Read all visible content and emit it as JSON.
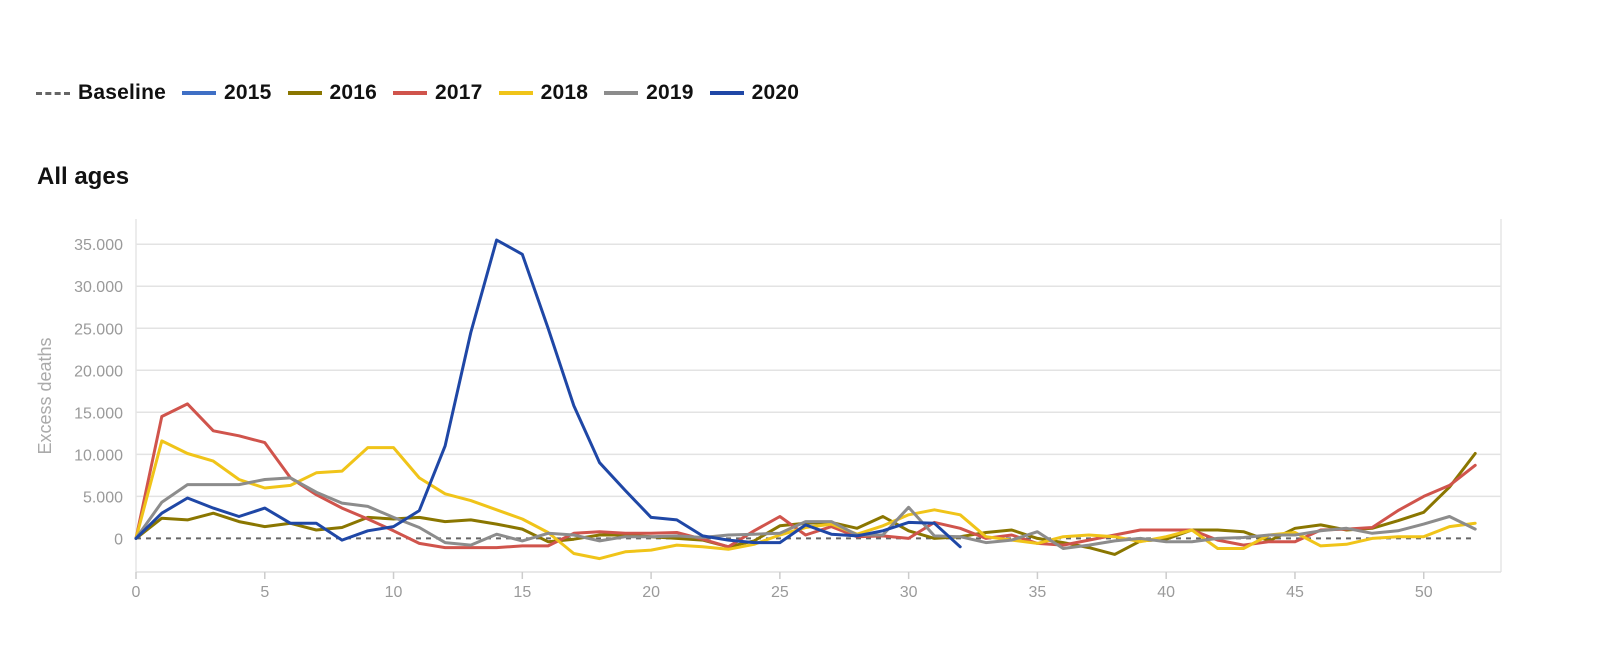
{
  "chart_data": {
    "type": "line",
    "title": "All ages",
    "ylabel": "Excess deaths",
    "xlabel": "",
    "xlim": [
      0,
      53
    ],
    "ylim": [
      -4000,
      38000
    ],
    "x_ticks": [
      0,
      5,
      10,
      15,
      20,
      25,
      30,
      35,
      40,
      45,
      50
    ],
    "y_ticks": [
      0,
      5000,
      10000,
      15000,
      20000,
      25000,
      30000,
      35000
    ],
    "y_tick_labels": [
      "0",
      "5.000",
      "10.000",
      "15.000",
      "20.000",
      "25.000",
      "30.000",
      "35.000"
    ],
    "grid": true,
    "legend_position": "top-left",
    "series": [
      {
        "name": "Baseline",
        "color": "#666666",
        "dashed": true,
        "x": [
          0,
          52
        ],
        "values": [
          0,
          0
        ]
      },
      {
        "name": "2015",
        "color": "#3f6fc5",
        "dashed": false,
        "x": [],
        "values": []
      },
      {
        "name": "2016",
        "color": "#8a7600",
        "dashed": false,
        "x": [
          0,
          1,
          2,
          3,
          4,
          5,
          6,
          7,
          8,
          9,
          10,
          11,
          12,
          13,
          14,
          15,
          16,
          17,
          18,
          19,
          20,
          21,
          22,
          23,
          24,
          25,
          26,
          27,
          28,
          29,
          30,
          31,
          32,
          33,
          34,
          35,
          36,
          37,
          38,
          39,
          40,
          41,
          42,
          43,
          44,
          45,
          46,
          47,
          48,
          49,
          50,
          51,
          52
        ],
        "values": [
          0,
          2400,
          2200,
          3000,
          2000,
          1400,
          1800,
          1000,
          1300,
          2500,
          2300,
          2500,
          2000,
          2200,
          1700,
          1100,
          -400,
          -100,
          400,
          400,
          200,
          0,
          -200,
          -1000,
          -300,
          1500,
          1800,
          1900,
          1200,
          2600,
          900,
          0,
          200,
          700,
          1000,
          0,
          -500,
          -1100,
          -1900,
          -300,
          -100,
          1000,
          1000,
          800,
          -300,
          1200,
          1600,
          1000,
          1200,
          2100,
          3100,
          6100,
          10100
        ]
      },
      {
        "name": "2017",
        "color": "#d0544c",
        "dashed": false,
        "x": [
          0,
          1,
          2,
          3,
          4,
          5,
          6,
          7,
          8,
          9,
          10,
          11,
          12,
          13,
          14,
          15,
          16,
          17,
          18,
          19,
          20,
          21,
          22,
          23,
          24,
          25,
          26,
          27,
          28,
          29,
          30,
          31,
          32,
          33,
          34,
          35,
          36,
          37,
          38,
          39,
          40,
          41,
          42,
          43,
          44,
          45,
          46,
          47,
          48,
          49,
          50,
          51,
          52
        ],
        "values": [
          0,
          14500,
          16000,
          12800,
          12200,
          11400,
          7200,
          5200,
          3600,
          2300,
          900,
          -600,
          -1100,
          -1100,
          -1100,
          -900,
          -900,
          600,
          800,
          600,
          600,
          700,
          -100,
          -1000,
          900,
          2600,
          400,
          1400,
          200,
          300,
          0,
          1900,
          1200,
          0,
          400,
          -600,
          -800,
          -200,
          400,
          1000,
          1000,
          1000,
          -200,
          -800,
          -400,
          -400,
          1000,
          1100,
          1300,
          3300,
          5000,
          6300,
          8700
        ]
      },
      {
        "name": "2018",
        "color": "#f0c419",
        "dashed": false,
        "x": [
          0,
          1,
          2,
          3,
          4,
          5,
          6,
          7,
          8,
          9,
          10,
          11,
          12,
          13,
          14,
          15,
          16,
          17,
          18,
          19,
          20,
          21,
          22,
          23,
          24,
          25,
          26,
          27,
          28,
          29,
          30,
          31,
          32,
          33,
          34,
          35,
          36,
          37,
          38,
          39,
          40,
          41,
          42,
          43,
          44,
          45,
          46,
          47,
          48,
          49,
          50,
          51,
          52
        ],
        "values": [
          0,
          11600,
          10100,
          9200,
          7000,
          6000,
          6300,
          7800,
          8000,
          10800,
          10800,
          7200,
          5300,
          4500,
          3400,
          2300,
          700,
          -1800,
          -2400,
          -1600,
          -1400,
          -800,
          -1000,
          -1300,
          -700,
          400,
          1300,
          1700,
          500,
          1500,
          2800,
          3400,
          2800,
          200,
          -200,
          -600,
          200,
          400,
          200,
          -400,
          200,
          1000,
          -1200,
          -1200,
          400,
          700,
          -900,
          -700,
          0,
          200,
          200,
          1400,
          1800
        ]
      },
      {
        "name": "2019",
        "color": "#8c8c8c",
        "dashed": false,
        "x": [
          0,
          1,
          2,
          3,
          4,
          5,
          6,
          7,
          8,
          9,
          10,
          11,
          12,
          13,
          14,
          15,
          16,
          17,
          18,
          19,
          20,
          21,
          22,
          23,
          24,
          25,
          26,
          27,
          28,
          29,
          30,
          31,
          32,
          33,
          34,
          35,
          36,
          37,
          38,
          39,
          40,
          41,
          42,
          43,
          44,
          45,
          46,
          47,
          48,
          49,
          50,
          51,
          52
        ],
        "values": [
          0,
          4300,
          6400,
          6400,
          6400,
          7000,
          7200,
          5500,
          4200,
          3800,
          2500,
          1300,
          -500,
          -800,
          500,
          -300,
          600,
          400,
          -300,
          200,
          200,
          300,
          100,
          400,
          500,
          600,
          2000,
          2000,
          400,
          400,
          3700,
          300,
          200,
          -500,
          -200,
          800,
          -1200,
          -800,
          -300,
          0,
          -400,
          -400,
          0,
          100,
          400,
          400,
          900,
          1200,
          600,
          900,
          1700,
          2600,
          1100
        ]
      },
      {
        "name": "2020",
        "color": "#1f47a6",
        "dashed": false,
        "x": [
          0,
          1,
          2,
          3,
          4,
          5,
          6,
          7,
          8,
          9,
          10,
          11,
          12,
          13,
          14,
          15,
          16,
          17,
          18,
          19,
          20,
          21,
          22,
          23,
          24,
          25,
          26,
          27,
          28,
          29,
          30,
          31,
          32
        ],
        "values": [
          0,
          3000,
          4800,
          3600,
          2600,
          3600,
          1800,
          1800,
          -200,
          900,
          1400,
          3300,
          11000,
          24500,
          35500,
          33800,
          25000,
          15800,
          9000,
          5700,
          2500,
          2200,
          300,
          -200,
          -500,
          -500,
          1600,
          500,
          300,
          900,
          1900,
          1800,
          -1000
        ]
      }
    ]
  }
}
